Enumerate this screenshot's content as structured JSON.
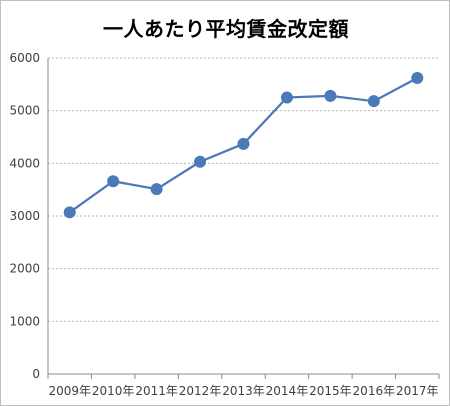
{
  "chart_data": {
    "type": "line",
    "title": "一人あたり平均賃金改定額",
    "categories": [
      "2009年",
      "2010年",
      "2011年",
      "2012年",
      "2013年",
      "2014年",
      "2015年",
      "2016年",
      "2017年"
    ],
    "series": [
      {
        "values": [
          3070,
          3660,
          3510,
          4030,
          4370,
          5250,
          5280,
          5180,
          5620
        ],
        "color": "#4a7ab8"
      }
    ],
    "ylim": [
      0,
      6000
    ],
    "yticks": [
      0,
      1000,
      2000,
      3000,
      4000,
      5000,
      6000
    ],
    "grid": "horizontal-dotted",
    "legend": "none"
  }
}
